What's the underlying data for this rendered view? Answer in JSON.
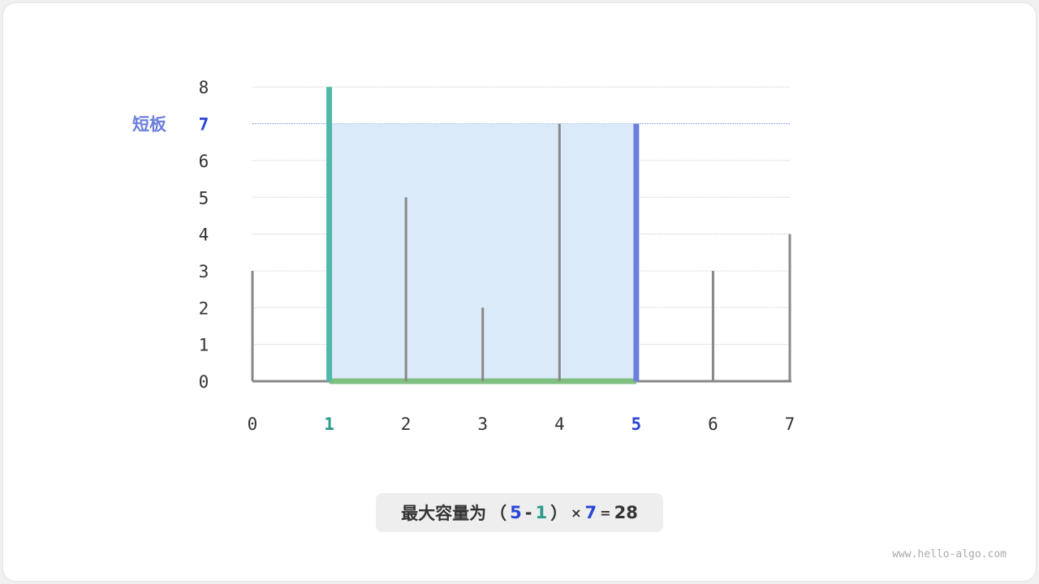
{
  "chart_data": {
    "type": "bar",
    "categories": [
      "0",
      "1",
      "2",
      "3",
      "4",
      "5",
      "6",
      "7"
    ],
    "values": [
      3,
      8,
      5,
      2,
      7,
      7,
      3,
      4
    ],
    "ylim": [
      0,
      8
    ],
    "yticks": [
      "0",
      "1",
      "2",
      "3",
      "4",
      "5",
      "6",
      "7",
      "8"
    ],
    "grid": true,
    "left_index": 1,
    "right_index": 5,
    "short_board_label": "短板",
    "short_board_value": 7,
    "colors": {
      "left": "#4fb8ab",
      "right": "#6b7fdc",
      "fill": "#dbeaf8",
      "base": "#7fbf7f",
      "bar": "#888888",
      "highlight_text_left": "#2e9c8c",
      "highlight_text_right": "#2946d6"
    }
  },
  "result": {
    "prefix": "最大容量为",
    "open": "（",
    "right": "5",
    "minus": "-",
    "left": "1",
    "close": "）",
    "times": "×",
    "height": "7",
    "equals": "=",
    "value": "28"
  },
  "watermark": "www.hello-algo.com"
}
